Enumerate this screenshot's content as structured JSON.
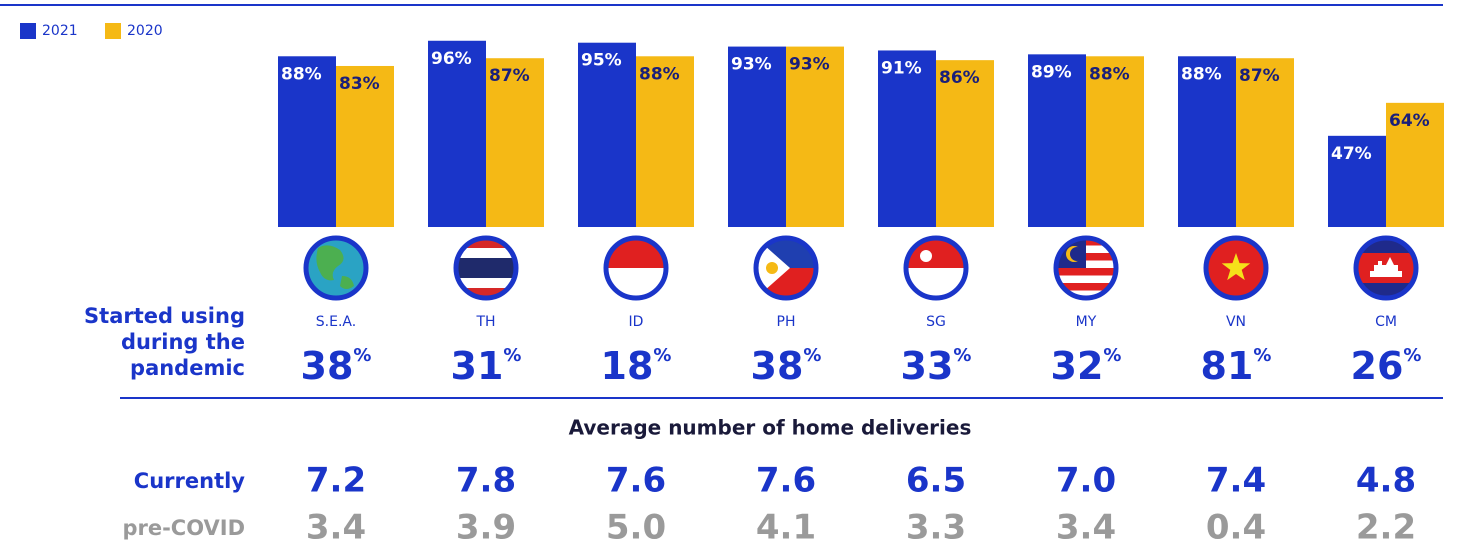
{
  "chart_data": {
    "type": "bar",
    "categories": [
      "S.E.A.",
      "TH",
      "ID",
      "PH",
      "SG",
      "MY",
      "VN",
      "CM"
    ],
    "series": [
      {
        "name": "2021",
        "color": "#1a35c9",
        "values": [
          88,
          96,
          95,
          93,
          91,
          89,
          88,
          47
        ],
        "value_labels": [
          "88%",
          "96%",
          "95%",
          "93%",
          "91%",
          "89%",
          "88%",
          "47%"
        ]
      },
      {
        "name": "2020",
        "color": "#f5b915",
        "values": [
          83,
          87,
          88,
          93,
          86,
          88,
          87,
          64
        ],
        "value_labels": [
          "83%",
          "87%",
          "88%",
          "93%",
          "86%",
          "88%",
          "87%",
          "64%"
        ]
      }
    ],
    "legend": "top-left"
  },
  "pandemic_row": {
    "label": [
      "Started using",
      "during the",
      "pandemic"
    ],
    "values": [
      38,
      31,
      18,
      38,
      33,
      32,
      81,
      26
    ],
    "unit": "%"
  },
  "deliveries": {
    "title": "Average number of home deliveries",
    "rows": [
      {
        "label": "Currently",
        "color": "#1a35c9",
        "values": [
          "7.2",
          "7.8",
          "7.6",
          "7.6",
          "6.5",
          "7.0",
          "7.4",
          "4.8"
        ]
      },
      {
        "label": "pre-COVID",
        "color": "#9a9a9a",
        "values": [
          "3.4",
          "3.9",
          "5.0",
          "4.1",
          "3.3",
          "3.4",
          "0.4",
          "2.2"
        ]
      }
    ]
  }
}
